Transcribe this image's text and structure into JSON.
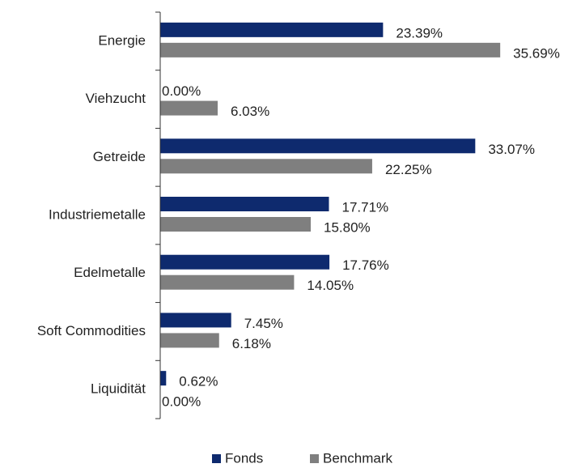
{
  "chart_data": {
    "type": "bar",
    "orientation": "horizontal",
    "categories": [
      "Energie",
      "Viehzucht",
      "Getreide",
      "Industriemetalle",
      "Edelmetalle",
      "Soft Commodities",
      "Liquidität"
    ],
    "series": [
      {
        "name": "Fonds",
        "color": "#0e2a6e",
        "values": [
          23.39,
          0.0,
          33.07,
          17.71,
          17.76,
          7.45,
          0.62
        ],
        "value_labels": [
          "23.39%",
          "0.00%",
          "33.07%",
          "17.71%",
          "17.76%",
          "7.45%",
          "0.62%"
        ]
      },
      {
        "name": "Benchmark",
        "color": "#7f7f7f",
        "values": [
          35.69,
          6.03,
          22.25,
          15.8,
          14.05,
          6.18,
          0.0
        ],
        "value_labels": [
          "35.69%",
          "6.03%",
          "22.25%",
          "15.80%",
          "14.05%",
          "6.18%",
          "0.00%"
        ]
      }
    ],
    "xlim": [
      0,
      44
    ],
    "legend": "bottom"
  }
}
